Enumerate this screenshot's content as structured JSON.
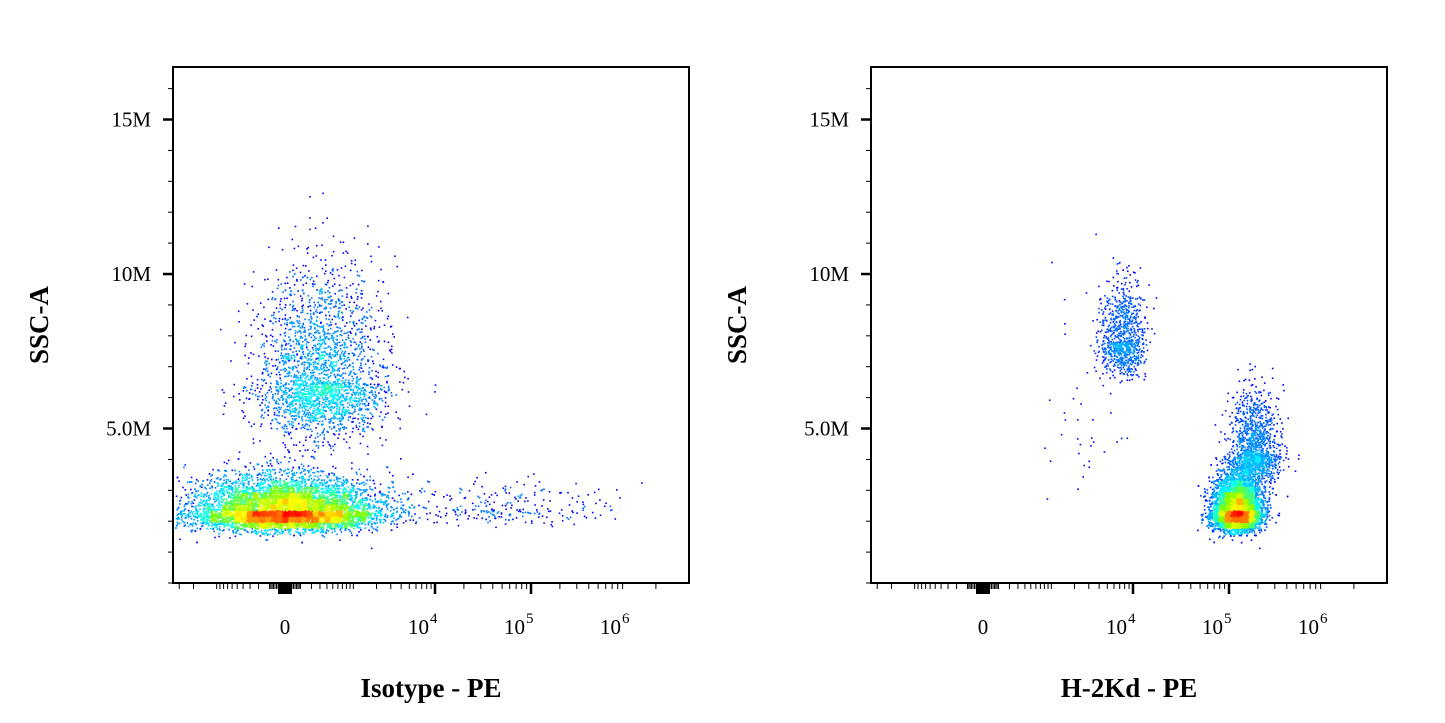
{
  "chart_data": [
    {
      "type": "scatter",
      "xlabel": "Isotype - PE",
      "ylabel": "SSC-A",
      "x_scale": "biexponential",
      "ylim": [
        0,
        16700000
      ],
      "x_ticks": [
        {
          "value": 0,
          "base": "0",
          "exp": ""
        },
        {
          "value": 10000,
          "base": "10",
          "exp": "4"
        },
        {
          "value": 100000,
          "base": "10",
          "exp": "5"
        },
        {
          "value": 1000000,
          "base": "10",
          "exp": "6"
        }
      ],
      "y_ticks": [
        {
          "value": 5000000,
          "label": "5.0M"
        },
        {
          "value": 10000000,
          "label": "10M"
        },
        {
          "value": 15000000,
          "label": "15M"
        }
      ],
      "populations": [
        {
          "x_center": 0,
          "y_center": 2300000,
          "x_spread": 1500,
          "y_spread": 700000,
          "count": 9000
        },
        {
          "x_center": 300,
          "y_center": 6500000,
          "x_spread": 1800,
          "y_spread": 2200000,
          "count": 2600
        },
        {
          "x_center": 50000,
          "y_center": 2400000,
          "x_spread": 600000,
          "y_spread": 600000,
          "count": 260
        }
      ]
    },
    {
      "type": "scatter",
      "xlabel": "H-2Kd - PE",
      "ylabel": "SSC-A",
      "x_scale": "biexponential",
      "ylim": [
        0,
        16700000
      ],
      "x_ticks": [
        {
          "value": 0,
          "base": "0",
          "exp": ""
        },
        {
          "value": 10000,
          "base": "10",
          "exp": "4"
        },
        {
          "value": 100000,
          "base": "10",
          "exp": "5"
        },
        {
          "value": 1000000,
          "base": "10",
          "exp": "6"
        }
      ],
      "y_ticks": [
        {
          "value": 5000000,
          "label": "5.0M"
        },
        {
          "value": 10000000,
          "label": "10M"
        },
        {
          "value": 15000000,
          "label": "15M"
        }
      ],
      "populations": [
        {
          "x_center": 120000,
          "y_center": 2300000,
          "x_spread": 80000,
          "y_spread": 700000,
          "count": 8500
        },
        {
          "x_center": 180000,
          "y_center": 4200000,
          "x_spread": 130000,
          "y_spread": 1200000,
          "count": 1400
        },
        {
          "x_center": 7500,
          "y_center": 7800000,
          "x_spread": 5000,
          "y_spread": 1300000,
          "count": 900
        },
        {
          "x_center": 3000,
          "y_center": 5000000,
          "x_spread": 6000,
          "y_spread": 3000000,
          "count": 40
        }
      ]
    }
  ],
  "colors": {
    "dots": "#0000ff",
    "density_scale": [
      "#0000ff",
      "#0080ff",
      "#00ffff",
      "#80ff00",
      "#ffff00",
      "#ff8000",
      "#ff0000"
    ]
  }
}
